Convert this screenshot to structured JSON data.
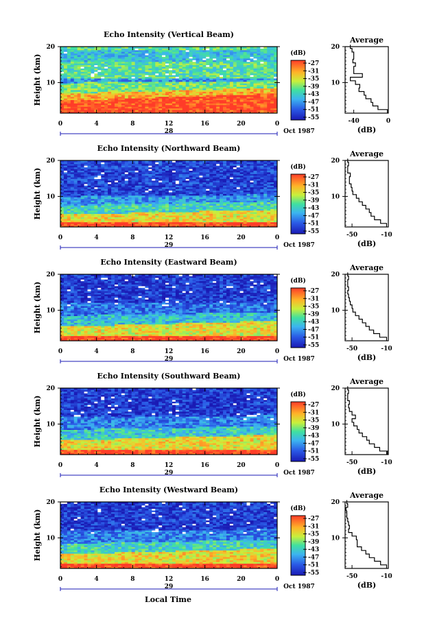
{
  "figure": {
    "xlabel": "Local Time",
    "date_label": "Oct 1987"
  },
  "chart_data": [
    {
      "type": "heatmap",
      "title": "Echo Intensity (Vertical Beam)",
      "ylabel": "Height (km)",
      "xlabel": "Local Time",
      "x_ticks": [
        "0",
        "4",
        "8",
        "12",
        "16",
        "20",
        "0"
      ],
      "y_ticks": [
        "10",
        "20"
      ],
      "xlim": [
        0,
        24
      ],
      "ylim": [
        1.5,
        20
      ],
      "date_day": "28",
      "colorbar": {
        "unit": "(dB)",
        "ticks": [
          "-27",
          "-31",
          "-35",
          "-39",
          "-43",
          "-47",
          "-51",
          "-55"
        ]
      },
      "layers": [
        {
          "top": 5.0,
          "level": 0.98,
          "slope": 1.0
        },
        {
          "top": 7.0,
          "level": 0.8,
          "slope": 0.8
        },
        {
          "top": 10.0,
          "level": 0.55,
          "slope": 0.3
        },
        {
          "top": 11.0,
          "level": 0.3,
          "slope": 0.0
        },
        {
          "top": 16.0,
          "level": 0.5,
          "slope": 0.0
        },
        {
          "top": 19.0,
          "level": 0.4,
          "slope": 0.0
        },
        {
          "top": 20.0,
          "level": 0.5,
          "slope": 0.0
        }
      ],
      "profile": {
        "title": "Average",
        "xlabel": "(dB)",
        "x_ticks": [
          "-40",
          "0"
        ],
        "xlim": [
          -50,
          0
        ],
        "y_ticks": [
          "10",
          "20"
        ],
        "ylim": [
          1.5,
          20
        ],
        "heights": [
          2,
          3,
          4,
          5,
          6,
          7,
          8,
          9,
          10,
          11,
          12,
          13,
          14,
          15,
          16,
          17,
          18,
          19,
          20
        ],
        "values_db": [
          -1,
          -12,
          -18,
          -20,
          -26,
          -28,
          -34,
          -33,
          -38,
          -44,
          -30,
          -40,
          -40,
          -38,
          -41,
          -40,
          -40,
          -42,
          -44
        ]
      }
    },
    {
      "type": "heatmap",
      "title": "Echo Intensity (Northward Beam)",
      "ylabel": "Height (km)",
      "xlabel": "Local Time",
      "x_ticks": [
        "0",
        "4",
        "8",
        "12",
        "16",
        "20",
        "0"
      ],
      "y_ticks": [
        "10",
        "20"
      ],
      "xlim": [
        0,
        24
      ],
      "ylim": [
        1.5,
        20
      ],
      "date_day": "29",
      "colorbar": {
        "unit": "(dB)",
        "ticks": [
          "-27",
          "-31",
          "-35",
          "-39",
          "-43",
          "-47",
          "-51",
          "-55"
        ]
      },
      "layers": [
        {
          "top": 2.8,
          "level": 1.0,
          "slope": 0.0
        },
        {
          "top": 5.0,
          "level": 0.72,
          "slope": 0.7
        },
        {
          "top": 7.5,
          "level": 0.45,
          "slope": 0.6
        },
        {
          "top": 10.0,
          "level": 0.3,
          "slope": 0.3
        },
        {
          "top": 20.0,
          "level": 0.12,
          "slope": 0.0
        }
      ],
      "profile": {
        "title": "Average",
        "xlabel": "(dB)",
        "x_ticks": [
          "-50",
          "-10"
        ],
        "xlim": [
          -58,
          -8
        ],
        "y_ticks": [
          "10",
          "20"
        ],
        "ylim": [
          1.5,
          20
        ],
        "heights": [
          2,
          3,
          4,
          5,
          6,
          7,
          8,
          9,
          10,
          11,
          12,
          13,
          14,
          15,
          16,
          17,
          18,
          19,
          20
        ],
        "values_db": [
          -10,
          -17,
          -24,
          -28,
          -30,
          -34,
          -38,
          -42,
          -45,
          -49,
          -50,
          -51,
          -53,
          -53,
          -52,
          -55,
          -55,
          -54,
          -55
        ]
      }
    },
    {
      "type": "heatmap",
      "title": "Echo Intensity (Eastward Beam)",
      "ylabel": "Height (km)",
      "xlabel": "Local Time",
      "x_ticks": [
        "0",
        "4",
        "8",
        "12",
        "16",
        "20",
        "0"
      ],
      "y_ticks": [
        "10",
        "20"
      ],
      "xlim": [
        0,
        24
      ],
      "ylim": [
        1.5,
        20
      ],
      "date_day": "29",
      "colorbar": {
        "unit": "(dB)",
        "ticks": [
          "-27",
          "-31",
          "-35",
          "-39",
          "-43",
          "-47",
          "-51",
          "-55"
        ]
      },
      "layers": [
        {
          "top": 3.0,
          "level": 1.0,
          "slope": 0.0
        },
        {
          "top": 5.5,
          "level": 0.7,
          "slope": 0.8
        },
        {
          "top": 8.5,
          "level": 0.4,
          "slope": 0.5
        },
        {
          "top": 12.0,
          "level": 0.22,
          "slope": 0.2
        },
        {
          "top": 20.0,
          "level": 0.1,
          "slope": 0.0
        }
      ],
      "profile": {
        "title": "Average",
        "xlabel": "(dB)",
        "x_ticks": [
          "-50",
          "-10"
        ],
        "xlim": [
          -58,
          -8
        ],
        "y_ticks": [
          "10",
          "20"
        ],
        "ylim": [
          1.5,
          20
        ],
        "heights": [
          2,
          3,
          4,
          5,
          6,
          7,
          8,
          9,
          10,
          11,
          12,
          13,
          14,
          15,
          16,
          17,
          18,
          19,
          20
        ],
        "values_db": [
          -10,
          -18,
          -25,
          -30,
          -34,
          -38,
          -42,
          -46,
          -49,
          -50,
          -52,
          -53,
          -54,
          -55,
          -54,
          -55,
          -55,
          -54,
          -55
        ]
      }
    },
    {
      "type": "heatmap",
      "title": "Echo Intensity (Southward Beam)",
      "ylabel": "Height (km)",
      "xlabel": "Local Time",
      "x_ticks": [
        "0",
        "4",
        "8",
        "12",
        "16",
        "20",
        "0"
      ],
      "y_ticks": [
        "10",
        "20"
      ],
      "xlim": [
        0,
        24
      ],
      "ylim": [
        1.5,
        20
      ],
      "date_day": "29",
      "colorbar": {
        "unit": "(dB)",
        "ticks": [
          "-27",
          "-31",
          "-35",
          "-39",
          "-43",
          "-47",
          "-51",
          "-55"
        ]
      },
      "layers": [
        {
          "top": 3.0,
          "level": 1.0,
          "slope": 0.0
        },
        {
          "top": 5.5,
          "level": 0.72,
          "slope": 0.8
        },
        {
          "top": 8.5,
          "level": 0.42,
          "slope": 0.5
        },
        {
          "top": 12.0,
          "level": 0.25,
          "slope": 0.2
        },
        {
          "top": 20.0,
          "level": 0.1,
          "slope": 0.0
        }
      ],
      "profile": {
        "title": "Average",
        "xlabel": "(dB)",
        "x_ticks": [
          "-50",
          "-10"
        ],
        "xlim": [
          -58,
          -8
        ],
        "y_ticks": [
          "10",
          "20"
        ],
        "ylim": [
          1.5,
          20
        ],
        "heights": [
          2,
          3,
          4,
          5,
          6,
          7,
          8,
          9,
          10,
          11,
          12,
          13,
          14,
          15,
          16,
          17,
          18,
          19,
          20
        ],
        "values_db": [
          -9,
          -18,
          -24,
          -30,
          -33,
          -38,
          -42,
          -44,
          -48,
          -50,
          -46,
          -50,
          -53,
          -54,
          -53,
          -55,
          -55,
          -54,
          -55
        ]
      }
    },
    {
      "type": "heatmap",
      "title": "Echo Intensity (Westward Beam)",
      "ylabel": "Height (km)",
      "xlabel": "Local Time",
      "x_ticks": [
        "0",
        "4",
        "8",
        "12",
        "16",
        "20",
        "0"
      ],
      "y_ticks": [
        "10",
        "20"
      ],
      "xlim": [
        0,
        24
      ],
      "ylim": [
        1.5,
        20
      ],
      "date_day": "29",
      "colorbar": {
        "unit": "(dB)",
        "ticks": [
          "-27",
          "-31",
          "-35",
          "-39",
          "-43",
          "-47",
          "-51",
          "-55"
        ]
      },
      "layers": [
        {
          "top": 3.0,
          "level": 1.0,
          "slope": 0.0
        },
        {
          "top": 5.5,
          "level": 0.72,
          "slope": 0.8
        },
        {
          "top": 8.5,
          "level": 0.45,
          "slope": 0.5
        },
        {
          "top": 12.0,
          "level": 0.25,
          "slope": 0.2
        },
        {
          "top": 20.0,
          "level": 0.1,
          "slope": 0.0
        }
      ],
      "profile": {
        "title": "Average",
        "xlabel": "(dB)",
        "x_ticks": [
          "-50",
          "-10"
        ],
        "xlim": [
          -58,
          -8
        ],
        "y_ticks": [
          "10",
          "20"
        ],
        "ylim": [
          1.5,
          20
        ],
        "heights": [
          2,
          3,
          4,
          5,
          6,
          7,
          8,
          9,
          10,
          11,
          12,
          13,
          14,
          15,
          16,
          17,
          18,
          19,
          20
        ],
        "values_db": [
          -10,
          -17,
          -24,
          -30,
          -34,
          -39,
          -44,
          -44,
          -45,
          -50,
          -54,
          -53,
          -54,
          -55,
          -56,
          -56,
          -57,
          -55,
          -56
        ]
      }
    }
  ]
}
